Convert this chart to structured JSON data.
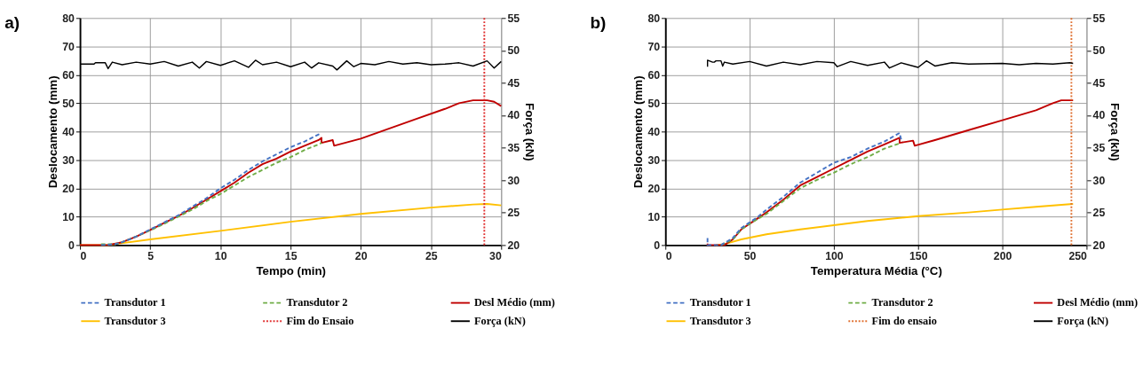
{
  "chart_data": [
    {
      "type": "line",
      "title": "a)",
      "xlabel": "Tempo (min)",
      "ylabel": "Deslocamento (mm)",
      "y2label": "Força (kN)",
      "xlim": [
        0,
        30
      ],
      "xticks": [
        0,
        5,
        10,
        15,
        20,
        25,
        30
      ],
      "ylim": [
        0,
        80
      ],
      "yticks": [
        0,
        10,
        20,
        30,
        40,
        50,
        60,
        70,
        80
      ],
      "y2lim": [
        20,
        55
      ],
      "y2ticks": [
        20,
        25,
        30,
        35,
        40,
        45,
        50,
        55
      ],
      "grid": true,
      "legend": "bottom",
      "series": [
        {
          "name": "Transdutor 1",
          "color": "#4472c4",
          "line_style": "dashed",
          "x": [
            1.5,
            2.5,
            3,
            4,
            5,
            6,
            7,
            8,
            9,
            10,
            11,
            12,
            13,
            14,
            15,
            16,
            17,
            17.2
          ],
          "values": [
            0,
            0.3,
            1,
            3,
            5.5,
            8,
            10.5,
            13.5,
            16.5,
            20,
            23,
            26.5,
            29.5,
            32,
            34.5,
            36.5,
            39,
            39.5
          ]
        },
        {
          "name": "Transdutor 2",
          "color": "#70ad47",
          "line_style": "dashed",
          "x": [
            1.5,
            2.5,
            3,
            4,
            5,
            6,
            7,
            8,
            9,
            10,
            11,
            12,
            13,
            14,
            15,
            16,
            17,
            17.2
          ],
          "values": [
            0.3,
            0.3,
            1,
            3,
            5.2,
            7.5,
            10,
            12.5,
            15.5,
            18,
            21,
            24,
            26.5,
            29,
            31,
            33.5,
            35.5,
            36
          ]
        },
        {
          "name": "Desl Médio (mm)",
          "color": "#c00000",
          "line_style": "solid",
          "x": [
            0,
            2,
            3,
            4,
            5,
            6,
            7,
            8,
            9,
            10,
            11,
            12,
            13,
            14,
            15,
            16,
            17,
            17.2,
            17.2,
            18,
            18.1,
            20,
            22,
            24,
            26,
            27,
            28,
            29,
            29.5,
            30
          ],
          "values": [
            0,
            0,
            1,
            3,
            5.3,
            7.8,
            10.2,
            13,
            16,
            19,
            22,
            25.5,
            28.5,
            30.5,
            33,
            35,
            37,
            37.8,
            36,
            37,
            35,
            37.5,
            41,
            44.5,
            48,
            50,
            51,
            51,
            50.5,
            49
          ]
        },
        {
          "name": "Transdutor 3",
          "color": "#ffc000",
          "line_style": "solid",
          "x": [
            0,
            2,
            5,
            10,
            15,
            20,
            25,
            28,
            29,
            30
          ],
          "values": [
            0,
            0,
            2,
            5,
            8.2,
            11,
            13.2,
            14.3,
            14.5,
            14
          ]
        },
        {
          "name": "Força (kN)",
          "color": "#000000",
          "line_style": "solid",
          "axis": "y2",
          "x": [
            0,
            1,
            1.1,
            1.8,
            2,
            2.3,
            3,
            4,
            5,
            6,
            7,
            8,
            8.5,
            9,
            10,
            11,
            12,
            12.5,
            13,
            14,
            15,
            16,
            16.5,
            17,
            18,
            18.3,
            19,
            19.5,
            20,
            21,
            22,
            23,
            24,
            25,
            26,
            27,
            28,
            29,
            29.5,
            30
          ],
          "values": [
            47.9,
            47.9,
            48.1,
            48.1,
            47.2,
            48.2,
            47.8,
            48.2,
            47.9,
            48.3,
            47.6,
            48.2,
            47.3,
            48.3,
            47.7,
            48.4,
            47.4,
            48.5,
            47.8,
            48.2,
            47.5,
            48.2,
            47.3,
            48.1,
            47.6,
            47.0,
            48.4,
            47.5,
            48.0,
            47.8,
            48.3,
            47.9,
            48.1,
            47.8,
            47.9,
            48.1,
            47.6,
            48.4,
            47.3,
            48.3
          ]
        }
      ],
      "ref_lines": [
        {
          "axis": "x",
          "value": 28.8,
          "label": "Fim do Ensaio",
          "color": "#e03030",
          "line_style": "dotted"
        }
      ]
    },
    {
      "type": "line",
      "title": "b)",
      "xlabel": "Temperatura Média (°C)",
      "ylabel": "Deslocamento (mm)",
      "y2label": "Força (kN)",
      "xlim": [
        0,
        250
      ],
      "xticks": [
        0,
        50,
        100,
        150,
        200,
        250
      ],
      "ylim": [
        0,
        80
      ],
      "yticks": [
        0,
        10,
        20,
        30,
        40,
        50,
        60,
        70,
        80
      ],
      "y2lim": [
        20,
        55
      ],
      "y2ticks": [
        20,
        25,
        30,
        35,
        40,
        45,
        50,
        55
      ],
      "grid": true,
      "legend": "bottom",
      "series": [
        {
          "name": "Transdutor 1",
          "color": "#4472c4",
          "line_style": "dashed",
          "x": [
            25,
            25,
            33,
            40,
            45,
            50,
            55,
            60,
            70,
            80,
            90,
            100,
            110,
            120,
            130,
            139,
            140
          ],
          "values": [
            2.5,
            0,
            0,
            2.5,
            6,
            8,
            10,
            12.5,
            17,
            22,
            25.5,
            29,
            31,
            34,
            36.5,
            39.5,
            37
          ]
        },
        {
          "name": "Transdutor 2",
          "color": "#70ad47",
          "line_style": "dashed",
          "x": [
            33,
            40,
            45,
            50,
            60,
            70,
            80,
            90,
            100,
            110,
            120,
            130,
            139
          ],
          "values": [
            0,
            2,
            5.5,
            7.5,
            11,
            15.5,
            20,
            23,
            25.5,
            28.5,
            31,
            34,
            35.8
          ]
        },
        {
          "name": "Desl Médio (mm)",
          "color": "#c00000",
          "line_style": "solid",
          "x": [
            25,
            25,
            35,
            40,
            45,
            50,
            60,
            70,
            80,
            90,
            100,
            110,
            120,
            130,
            139,
            139,
            147,
            148,
            160,
            180,
            200,
            220,
            230,
            235,
            242
          ],
          "values": [
            0.5,
            0,
            0,
            2,
            5.5,
            7.5,
            11.5,
            16,
            21,
            24,
            27,
            30,
            33,
            35.5,
            37.8,
            36,
            36.8,
            35,
            37,
            40.5,
            44,
            47.5,
            50,
            51,
            51
          ]
        },
        {
          "name": "Transdutor 3",
          "color": "#ffc000",
          "line_style": "solid",
          "x": [
            30,
            35,
            45,
            60,
            80,
            100,
            120,
            150,
            180,
            200,
            220,
            242
          ],
          "values": [
            0,
            0.3,
            2,
            3.8,
            5.5,
            7,
            8.5,
            10.2,
            11.5,
            12.5,
            13.5,
            14.5
          ]
        },
        {
          "name": "Força (kN)",
          "color": "#000000",
          "line_style": "solid",
          "axis": "y2",
          "x": [
            25,
            25,
            28,
            29,
            30,
            33,
            34,
            35,
            40,
            50,
            60,
            70,
            80,
            90,
            100,
            102,
            110,
            120,
            130,
            133,
            140,
            150,
            155,
            160,
            170,
            180,
            200,
            210,
            220,
            230,
            240,
            242
          ],
          "values": [
            47.5,
            48.5,
            48.2,
            48.2,
            48.4,
            48.4,
            47.6,
            48.2,
            47.9,
            48.3,
            47.6,
            48.2,
            47.8,
            48.3,
            48.1,
            47.5,
            48.3,
            47.7,
            48.2,
            47.3,
            48.1,
            47.4,
            48.4,
            47.6,
            48.1,
            47.9,
            48.0,
            47.8,
            48.0,
            47.9,
            48.1,
            48.0
          ]
        }
      ],
      "ref_lines": [
        {
          "axis": "x",
          "value": 241,
          "label": "Fim do ensaio",
          "color": "#e07030",
          "line_style": "dotted"
        }
      ]
    }
  ]
}
